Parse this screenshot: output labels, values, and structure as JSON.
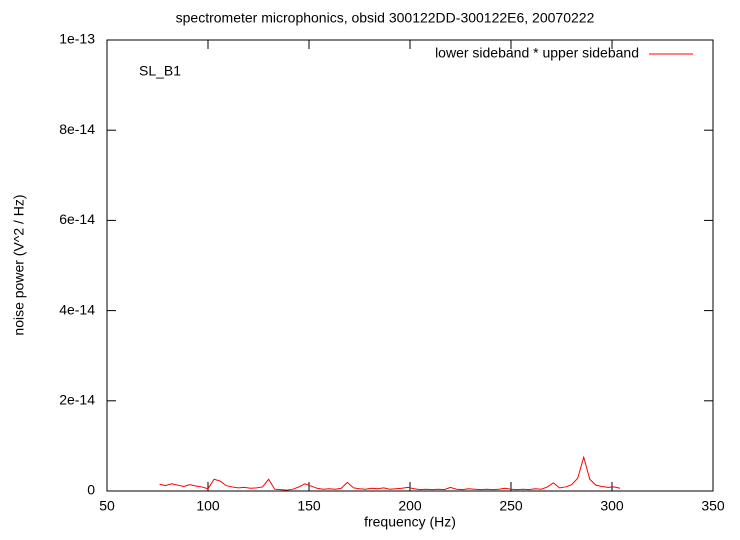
{
  "chart_data": {
    "type": "line",
    "title": "spectrometer microphonics, obsid 300122DD-300122E6, 20070222",
    "xlabel": "frequency (Hz)",
    "ylabel": "noise power (V^2 / Hz)",
    "annotation": "SL_B1",
    "legend": "top-right",
    "xlim": [
      50,
      350
    ],
    "xticks": [
      50,
      100,
      150,
      200,
      250,
      300,
      350
    ],
    "ylim": [
      0,
      1e-13
    ],
    "yticks": [
      0,
      2e-14,
      4e-14,
      6e-14,
      8e-14,
      1e-13
    ],
    "x": [
      76,
      79,
      82,
      85,
      88,
      91,
      94,
      97,
      100,
      103,
      106,
      109,
      112,
      115,
      118,
      121,
      124,
      127,
      130,
      133,
      136,
      139,
      142,
      145,
      148,
      151,
      154,
      157,
      160,
      163,
      166,
      169,
      172,
      175,
      178,
      181,
      184,
      187,
      190,
      193,
      196,
      199,
      202,
      205,
      208,
      211,
      214,
      217,
      220,
      223,
      226,
      229,
      232,
      235,
      238,
      241,
      244,
      247,
      250,
      253,
      256,
      259,
      262,
      265,
      268,
      271,
      274,
      277,
      280,
      283,
      286,
      289,
      292,
      295,
      298,
      301,
      304
    ],
    "series": [
      {
        "name": "lower sideband * upper sideband",
        "color": "#ff0000",
        "values": [
          1.5e-15,
          1.2e-15,
          1.6e-15,
          1.3e-15,
          1e-15,
          1.4e-15,
          1.1e-15,
          9e-16,
          5e-16,
          2.6e-15,
          2.2e-15,
          1.2e-15,
          9e-16,
          7e-16,
          8e-16,
          6e-16,
          7e-16,
          9e-16,
          2.6e-15,
          4e-16,
          3e-16,
          2e-16,
          4e-16,
          9e-16,
          1.6e-15,
          1.1e-15,
          6e-16,
          4e-16,
          5e-16,
          4e-16,
          6e-16,
          1.9e-15,
          7e-16,
          5e-16,
          4e-16,
          6e-16,
          5e-16,
          7e-16,
          4e-16,
          5e-16,
          6e-16,
          8e-16,
          5e-16,
          3e-16,
          4e-16,
          3e-16,
          4e-16,
          3e-16,
          8e-16,
          4e-16,
          3e-16,
          5e-16,
          4e-16,
          3e-16,
          4e-16,
          3e-16,
          4e-16,
          6e-16,
          4e-16,
          3e-16,
          4e-16,
          3e-16,
          5e-16,
          4e-16,
          9e-16,
          1.8e-15,
          7e-16,
          9e-16,
          1.4e-15,
          2.8e-15,
          7.5e-15,
          2.6e-15,
          1.3e-15,
          1e-15,
          8e-16,
          9e-16,
          6e-16
        ]
      }
    ]
  }
}
